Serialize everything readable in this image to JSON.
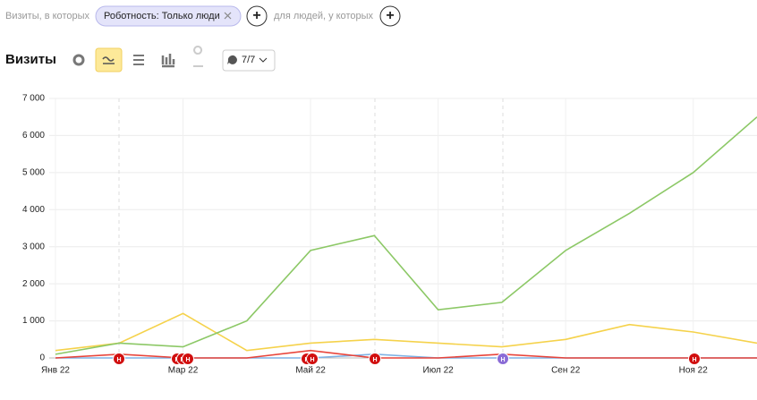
{
  "toolbar": {
    "prefix": "Визиты, в которых",
    "filter": "Роботность: Только люди",
    "add": "+",
    "middle": "для людей, у которых",
    "add2": "+"
  },
  "heading": {
    "title": "Визиты",
    "annotations_toggle": "7/7"
  },
  "chart_data": {
    "type": "line",
    "categories": [
      "Янв 22",
      null,
      "Мар 22",
      null,
      "Май 22",
      null,
      "Июл 22",
      null,
      "Сен 22",
      null,
      "Ноя 22",
      null
    ],
    "series": [
      {
        "color": "#8cc866",
        "values": [
          100,
          400,
          300,
          1000,
          2900,
          3300,
          1300,
          1500,
          2900,
          3900,
          5000,
          6500
        ]
      },
      {
        "color": "#f5d24b",
        "values": [
          200,
          400,
          1200,
          200,
          400,
          500,
          400,
          300,
          500,
          900,
          700,
          400
        ]
      },
      {
        "color": "#e8443a",
        "values": [
          0,
          100,
          0,
          0,
          200,
          0,
          0,
          100,
          0,
          0,
          0,
          0
        ]
      },
      {
        "color": "#7fb2e5",
        "values": [
          0,
          0,
          0,
          0,
          0,
          100,
          0,
          0,
          0,
          0,
          0,
          0
        ]
      }
    ],
    "ylim": [
      0,
      7000
    ],
    "yticks": [
      0,
      {
        "value": 1000,
        "label": "1 000"
      },
      {
        "value": 2000,
        "label": "2 000"
      },
      {
        "value": 3000,
        "label": "3 000"
      },
      {
        "value": 4000,
        "label": "4 000"
      },
      {
        "value": 5000,
        "label": "5 000"
      },
      {
        "value": 6000,
        "label": "6 000"
      },
      {
        "value": 7000,
        "label": "7 000"
      }
    ],
    "grid": true,
    "annotation_text": "Н"
  }
}
